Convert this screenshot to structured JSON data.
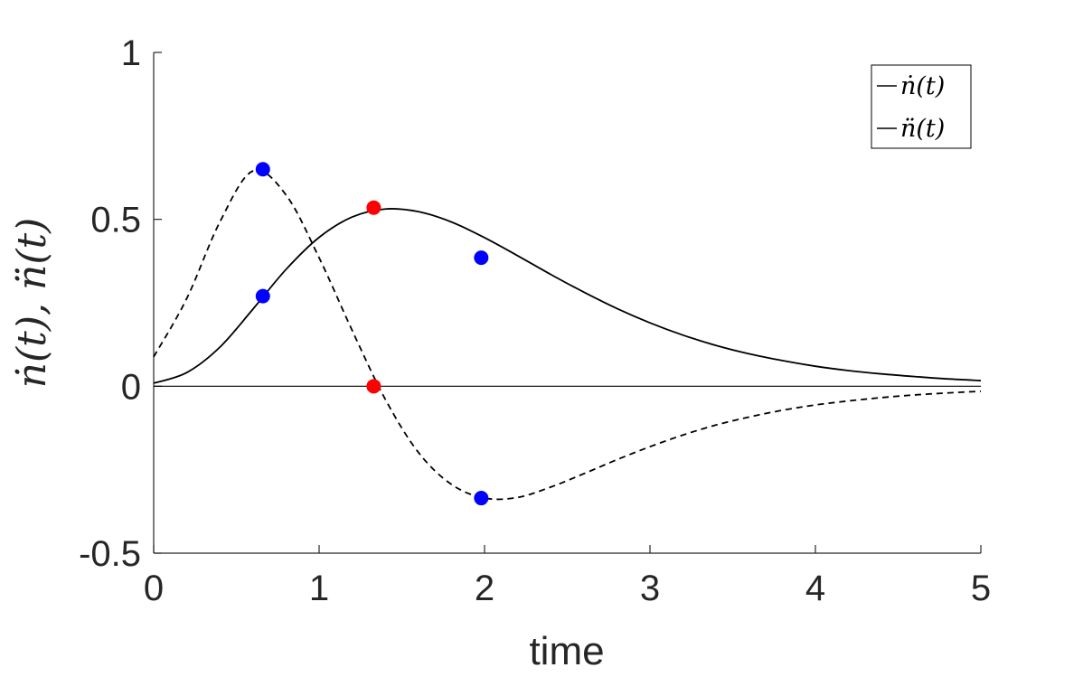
{
  "chart_data": {
    "type": "line",
    "xlabel": "time",
    "ylabel": "ṅ(t), n̈(t)",
    "xlim": [
      0,
      5
    ],
    "ylim": [
      -0.5,
      1
    ],
    "xticks": [
      "0",
      "1",
      "2",
      "3",
      "4",
      "5"
    ],
    "yticks": [
      "-0.5",
      "0",
      "0.5",
      "1"
    ],
    "grid": false,
    "legend_position": "top-right",
    "legend": [
      "ṅ(t)",
      "n̈(t)"
    ],
    "series": [
      {
        "name": "ṅ(t)",
        "style": "solid",
        "color": "#000000",
        "x": [
          0,
          0.2,
          0.4,
          0.6,
          0.8,
          1.0,
          1.2,
          1.4,
          1.6,
          1.8,
          2.0,
          2.2,
          2.4,
          2.6,
          2.8,
          3.0,
          3.2,
          3.4,
          3.6,
          3.8,
          4.0,
          4.2,
          4.4,
          4.6,
          4.8,
          5.0
        ],
        "values": [
          0.009,
          0.041,
          0.117,
          0.231,
          0.35,
          0.446,
          0.507,
          0.531,
          0.523,
          0.492,
          0.445,
          0.391,
          0.335,
          0.282,
          0.233,
          0.19,
          0.153,
          0.122,
          0.097,
          0.077,
          0.06,
          0.047,
          0.037,
          0.029,
          0.022,
          0.017
        ]
      },
      {
        "name": "n̈(t)",
        "style": "dashed",
        "color": "#000000",
        "x": [
          0,
          0.2,
          0.4,
          0.6,
          0.8,
          1.0,
          1.2,
          1.4,
          1.6,
          1.8,
          2.0,
          2.2,
          2.4,
          2.6,
          2.8,
          3.0,
          3.2,
          3.4,
          3.6,
          3.8,
          4.0,
          4.2,
          4.4,
          4.6,
          4.8,
          5.0
        ],
        "values": [
          0.088,
          0.263,
          0.492,
          0.645,
          0.573,
          0.385,
          0.167,
          -0.039,
          -0.198,
          -0.294,
          -0.335,
          -0.333,
          -0.302,
          -0.262,
          -0.22,
          -0.181,
          -0.146,
          -0.116,
          -0.092,
          -0.072,
          -0.056,
          -0.044,
          -0.034,
          -0.026,
          -0.02,
          -0.015
        ]
      },
      {
        "name": "",
        "style": "zero-line",
        "color": "#000000",
        "x": [
          0,
          5
        ],
        "values": [
          0,
          0
        ]
      }
    ],
    "markers": [
      {
        "x": 0.66,
        "y": 0.65,
        "color": "#0000ff"
      },
      {
        "x": 0.66,
        "y": 0.27,
        "color": "#0000ff"
      },
      {
        "x": 1.33,
        "y": 0.535,
        "color": "#ff0000"
      },
      {
        "x": 1.33,
        "y": 0.0,
        "color": "#ff0000"
      },
      {
        "x": 1.98,
        "y": 0.385,
        "color": "#0000ff"
      },
      {
        "x": 1.98,
        "y": -0.335,
        "color": "#0000ff"
      }
    ]
  }
}
